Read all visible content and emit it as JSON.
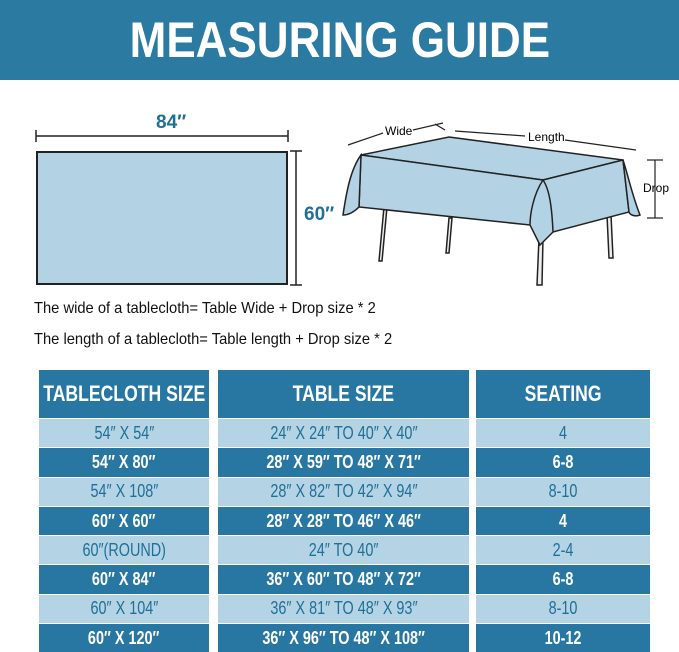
{
  "title": "MEASURING GUIDE",
  "diagram": {
    "width_label": "84″",
    "height_label": "60″",
    "wide_label": "Wide",
    "length_label": "Length",
    "drop_label": "Drop",
    "cloth_color": "#b3d3e5"
  },
  "formulas": [
    "The wide of a tablecloth= Table Wide + Drop size * 2",
    "The length of a tablecloth= Table length + Drop size * 2"
  ],
  "table": {
    "headers": [
      "TABLECLOTH SIZE",
      "TABLE SIZE",
      "SEATING"
    ],
    "rows": [
      [
        "54″ X 54″",
        "24″ X 24″ TO 40″ X 40″",
        "4"
      ],
      [
        "54″ X 80″",
        "28″ X 59″ TO 48″ X 71″",
        "6-8"
      ],
      [
        "54″ X 108″",
        "28″ X 82″ TO 42″ X 94″",
        "8-10"
      ],
      [
        "60″ X 60″",
        "28″ X 28″ TO 46″ X 46″",
        "4"
      ],
      [
        "60″(ROUND)",
        "24″ TO 40″",
        "2-4"
      ],
      [
        "60″ X 84″",
        "36″ X 60″ TO 48″ X 72″",
        "6-8"
      ],
      [
        "60″ X 104″",
        "36″ X 81″ TO 48″ X 93″",
        "8-10"
      ],
      [
        "60″ X 120″",
        "36″ X 96″ TO 48″ X 108″",
        "10-12"
      ]
    ]
  },
  "colors": {
    "header": "#2777a2",
    "light_row": "#b4d4e6",
    "text": "#1f6f96"
  }
}
